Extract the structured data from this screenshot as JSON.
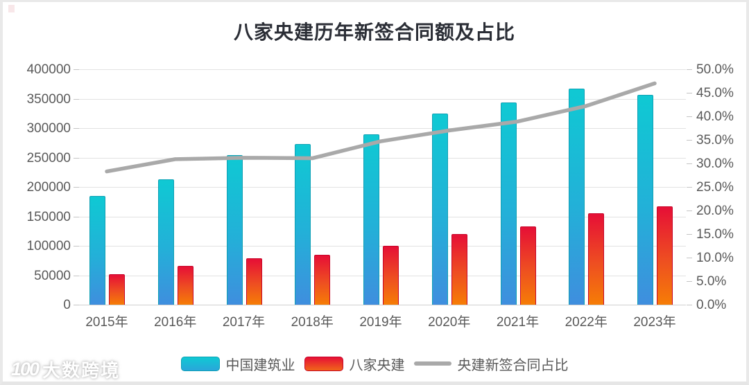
{
  "title": "八家央建历年新签合同额及占比",
  "chart_data": {
    "type": "combo-bar-line",
    "categories": [
      "2015年",
      "2016年",
      "2017年",
      "2018年",
      "2019年",
      "2020年",
      "2021年",
      "2022年",
      "2023年"
    ],
    "series": [
      {
        "name": "中国建筑业",
        "type": "bar",
        "axis": "left",
        "values": [
          185000,
          213000,
          254000,
          273000,
          289000,
          325000,
          344000,
          367000,
          356000
        ]
      },
      {
        "name": "八家央建",
        "type": "bar",
        "axis": "left",
        "values": [
          52000,
          66000,
          79000,
          85000,
          100000,
          120000,
          133000,
          155000,
          167000
        ]
      },
      {
        "name": "央建新签合同占比",
        "type": "line",
        "axis": "right",
        "values": [
          28.3,
          30.9,
          31.2,
          31.1,
          34.7,
          37.0,
          38.9,
          42.2,
          47.0
        ]
      }
    ],
    "left_axis": {
      "min": 0,
      "max": 400000,
      "tick_step": 50000,
      "tick_labels": [
        "400000",
        "350000",
        "300000",
        "250000",
        "200000",
        "150000",
        "100000",
        "50000",
        "0"
      ]
    },
    "right_axis": {
      "min": 0,
      "max": 50,
      "tick_step": 5,
      "tick_labels": [
        "50.0%",
        "45.0%",
        "40.0%",
        "35.0%",
        "30.0%",
        "25.0%",
        "20.0%",
        "15.0%",
        "10.0%",
        "5.0%",
        "0.0%"
      ],
      "unit": "%"
    },
    "grid": "horizontal",
    "legend_position": "bottom"
  },
  "legend": {
    "items": [
      {
        "label": "中国建筑业",
        "swatch": "bar-cyan"
      },
      {
        "label": "八家央建",
        "swatch": "bar-red"
      },
      {
        "label": "央建新签合同占比",
        "swatch": "line-gray"
      }
    ]
  },
  "watermark": {
    "logo": "100",
    "text": "大数跨境"
  },
  "colors": {
    "bar1_top": "#0fc9d3",
    "bar1_bottom": "#3f8ede",
    "bar1_border": "#0ea0b4",
    "bar2_top": "#e60f36",
    "bar2_bottom": "#f67d06",
    "bar2_border": "#c60428",
    "line": "#a9a9a9",
    "axis_text": "#595959",
    "title_text": "#2b2e36",
    "gridline": "#e2e2e2"
  }
}
